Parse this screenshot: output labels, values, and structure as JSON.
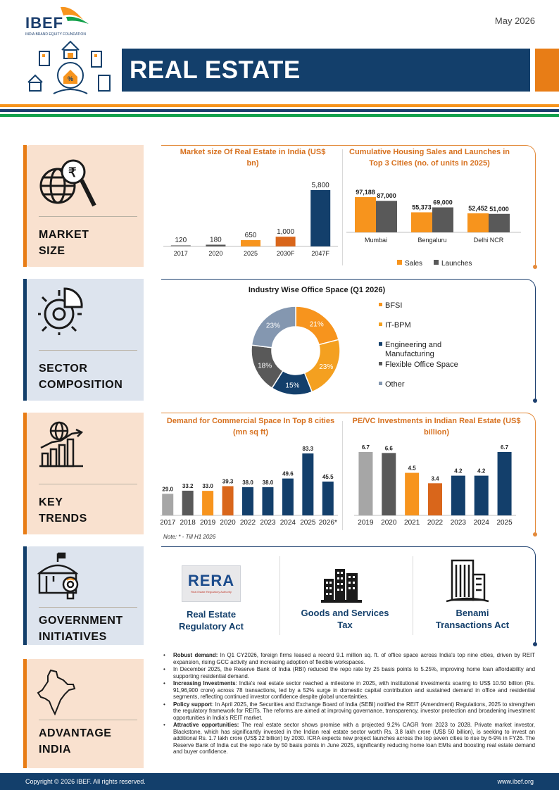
{
  "header": {
    "logo": "IBEF",
    "logo_sub": "INDIA BRAND EQUITY FOUNDATION",
    "date": "May 2026",
    "title": "REAL ESTATE"
  },
  "sections": {
    "market_size": [
      "MARKET",
      "SIZE"
    ],
    "sector_composition": [
      "SECTOR",
      "COMPOSITION"
    ],
    "key_trends": [
      "KEY",
      "TRENDS"
    ],
    "government_initiatives": [
      "GOVERNMENT",
      "INITIATIVES"
    ],
    "advantage_india": [
      "ADVANTAGE",
      "INDIA"
    ]
  },
  "colors": {
    "navy": "#133f6b",
    "orange": "#f7941d",
    "dark_orange": "#d9661b",
    "grey": "#595959",
    "light_grey": "#a6a6a6",
    "green": "#12a04a"
  },
  "chart_data": [
    {
      "type": "bar",
      "title": "Market size Of Real Estate in India (US$ bn)",
      "categories": [
        "2017",
        "2020",
        "2025",
        "2030F",
        "2047F"
      ],
      "values": [
        120,
        180,
        650,
        1000,
        5800
      ],
      "value_labels": [
        "120",
        "180",
        "650",
        "1,000",
        "5,800"
      ],
      "ylim": [
        0,
        5800
      ]
    },
    {
      "type": "bar",
      "title": "Cumulative Housing Sales and Launches in Top 3 Cities (no. of units in 2025)",
      "categories": [
        "Mumbai",
        "Bengaluru",
        "Delhi NCR"
      ],
      "series": [
        {
          "name": "Sales",
          "values": [
            97188,
            55373,
            52452
          ],
          "labels": [
            "97,188",
            "55,373",
            "52,452"
          ]
        },
        {
          "name": "Launches",
          "values": [
            87000,
            69000,
            51000
          ],
          "labels": [
            "87,000",
            "69,000",
            "51,000"
          ]
        }
      ],
      "legend": "bottom"
    },
    {
      "type": "pie",
      "title": "Industry Wise Office Space (Q1 2026)",
      "categories": [
        "BFSI",
        "IT-BPM",
        "Engineering and Manufacturing",
        "Flexible Office Space",
        "Other"
      ],
      "values": [
        21,
        23,
        15,
        18,
        23
      ],
      "labels": [
        "21%",
        "23%",
        "15%",
        "18%",
        "23%"
      ],
      "legend": "right"
    },
    {
      "type": "bar",
      "title": "Demand for Commercial Space In Top 8 cities (mn sq ft)",
      "categories": [
        "2017",
        "2018",
        "2019",
        "2020",
        "2022",
        "2023",
        "2024",
        "2025",
        "2026*"
      ],
      "values": [
        29.0,
        33.2,
        33.0,
        39.3,
        38.0,
        38.0,
        49.6,
        83.3,
        45.5
      ],
      "value_labels": [
        "29.0",
        "33.2",
        "33.0",
        "39.3",
        "38.0",
        "38.0",
        "49.6",
        "83.3",
        "45.5"
      ],
      "note": "Note: * - Till H1 2026"
    },
    {
      "type": "bar",
      "title": "PE/VC Investments in Indian Real Estate (US$ billion)",
      "categories": [
        "2019",
        "2020",
        "2021",
        "2022",
        "2023",
        "2024",
        "2025"
      ],
      "values": [
        6.7,
        6.6,
        4.5,
        3.4,
        4.2,
        4.2,
        6.7
      ],
      "value_labels": [
        "6.7",
        "6.6",
        "4.5",
        "3.4",
        "4.2",
        "4.2",
        "6.7"
      ]
    }
  ],
  "government": {
    "rera_logo": "RERA",
    "rera_logo_sub": "Real Estate Regulatory Authority",
    "items": [
      "Real Estate Regulatory Act",
      "Goods and Services Tax",
      "Benami Transactions Act"
    ]
  },
  "advantage": [
    {
      "head": "Robust demand:",
      "text": " In Q1 CY2026, foreign firms leased a record 9.1 million sq. ft. of office space across India's top nine cities, driven by REIT expansion, rising GCC activity and increasing adoption of flexible workspaces."
    },
    {
      "head": "",
      "text": "In December 2025, the Reserve Bank of India (RBI) reduced the repo rate by 25 basis points to 5.25%, improving home loan affordability and supporting residential demand."
    },
    {
      "head": "Increasing Investments",
      "text": ": India's real estate sector reached a milestone in 2025, with institutional investments soaring to US$ 10.50 billion (Rs. 91,96,900 crore) across 78 transactions, led by a 52% surge in domestic capital contribution and sustained demand in office and residential segments, reflecting continued investor confidence despite global uncertainties."
    },
    {
      "head": "Policy support",
      "text": ": In April 2025, the Securities and Exchange Board of India (SEBI) notified the REIT (Amendment) Regulations, 2025 to strengthen the regulatory framework for REITs. The reforms are aimed at improving governance, transparency, investor protection and broadening investment opportunities in India's REIT market."
    },
    {
      "head": "Attractive opportunities:",
      "text": " The real estate sector shows promise with a projected 9.2% CAGR from 2023 to 2028. Private market investor, Blackstone, which has significantly invested in the Indian real estate sector worth Rs. 3.8 lakh crore (US$ 50 billion), is seeking to invest an additional Rs. 1.7 lakh crore (US$ 22 billion) by 2030. ICRA expects new project launches across the top seven cities to rise by 6-9% in FY26. The Reserve Bank of India cut the repo rate by 50 basis points in June 2025, significantly reducing home loan EMIs and boosting real estate demand and buyer confidence."
    }
  ],
  "footer": {
    "copyright": "Copyright © 2026 IBEF. All rights reserved.",
    "website": "www.ibef.org"
  }
}
